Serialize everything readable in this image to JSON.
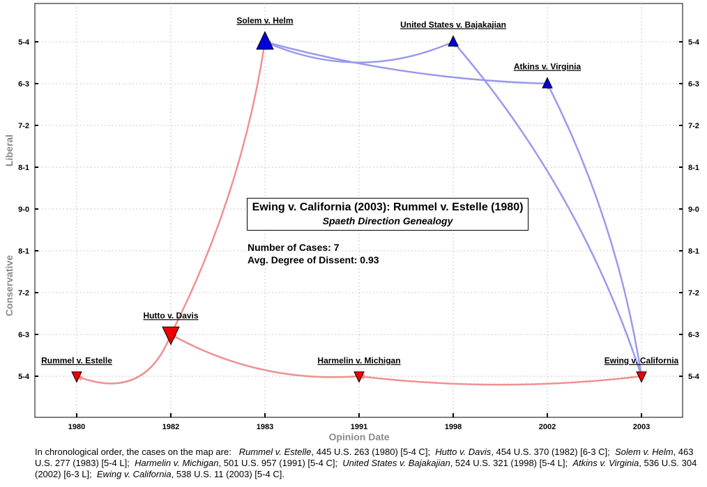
{
  "chart_data": {
    "type": "scatter",
    "title": "Ewing v. California (2003): Rummel v. Estelle (1980)",
    "subtitle": "Spaeth Direction Genealogy",
    "xlabel": "Opinion Date",
    "ylabel_upper": "Liberal",
    "ylabel_lower": "Conservative",
    "categories": [
      "1980",
      "1982",
      "1983",
      "1991",
      "1998",
      "2002",
      "2003"
    ],
    "y_ticks": [
      "5-4",
      "6-3",
      "7-2",
      "8-1",
      "9-0",
      "8-1",
      "7-2",
      "6-3",
      "5-4"
    ],
    "y_tick_note": "Top half = liberal majority (5-4 to 8-1), center 9-0, bottom half = conservative majority",
    "grid": true,
    "points": [
      {
        "name": "Rummel v. Estelle",
        "x": "1980",
        "vote": "5-4",
        "direction": "Conservative",
        "size": "small"
      },
      {
        "name": "Hutto v. Davis",
        "x": "1982",
        "vote": "6-3",
        "direction": "Conservative",
        "size": "large"
      },
      {
        "name": "Solem v. Helm",
        "x": "1983",
        "vote": "5-4",
        "direction": "Liberal",
        "size": "large"
      },
      {
        "name": "Harmelin v. Michigan",
        "x": "1991",
        "vote": "5-4",
        "direction": "Conservative",
        "size": "small"
      },
      {
        "name": "United States v. Bajakajian",
        "x": "1998",
        "vote": "5-4",
        "direction": "Liberal",
        "size": "small"
      },
      {
        "name": "Atkins v. Virginia",
        "x": "2002",
        "vote": "6-3",
        "direction": "Liberal",
        "size": "small"
      },
      {
        "name": "Ewing v. California",
        "x": "2003",
        "vote": "5-4",
        "direction": "Conservative",
        "size": "small"
      }
    ],
    "citations": [
      {
        "from": "Hutto v. Davis",
        "to": "Rummel v. Estelle",
        "color": "red"
      },
      {
        "from": "Solem v. Helm",
        "to": "Hutto v. Davis",
        "color": "red"
      },
      {
        "from": "Harmelin v. Michigan",
        "to": "Hutto v. Davis",
        "color": "red"
      },
      {
        "from": "Ewing v. California",
        "to": "Harmelin v. Michigan",
        "color": "red"
      },
      {
        "from": "United States v. Bajakajian",
        "to": "Solem v. Helm",
        "color": "blue"
      },
      {
        "from": "Atkins v. Virginia",
        "to": "Solem v. Helm",
        "color": "blue"
      },
      {
        "from": "Ewing v. California",
        "to": "United States v. Bajakajian",
        "color": "blue"
      },
      {
        "from": "Ewing v. California",
        "to": "Atkins v. Virginia",
        "color": "blue"
      }
    ],
    "colors": {
      "liberal": "#0000dd",
      "conservative": "#ee0000",
      "liberal_arrow": "#9999ee",
      "conservative_arrow": "#f09090"
    }
  },
  "stats": {
    "cases_line": "Number of Cases: 7",
    "dissent_line": "Avg. Degree of Dissent: 0.93"
  },
  "caption": {
    "intro": "In chronological order, the cases on the map are:",
    "cases": [
      {
        "name": "Rummel v. Estelle",
        "cite": ", 445 U.S. 263 (1980) [5-4 C];"
      },
      {
        "name": "Hutto v. Davis",
        "cite": ", 454 U.S. 370 (1982) [6-3 C];"
      },
      {
        "name": "Solem v. Helm",
        "cite": ", 463 U.S. 277 (1983) [5-4 L];"
      },
      {
        "name": "Harmelin v. Michigan",
        "cite": ", 501 U.S. 957 (1991) [5-4 C];"
      },
      {
        "name": "United States v. Bajakajian",
        "cite": ", 524 U.S. 321 (1998) [5-4 L];"
      },
      {
        "name": "Atkins v. Virginia",
        "cite": ", 536 U.S. 304 (2002) [6-3 L];"
      },
      {
        "name": "Ewing v. California",
        "cite": ", 538 U.S. 11 (2003) [5-4 C]."
      }
    ]
  }
}
